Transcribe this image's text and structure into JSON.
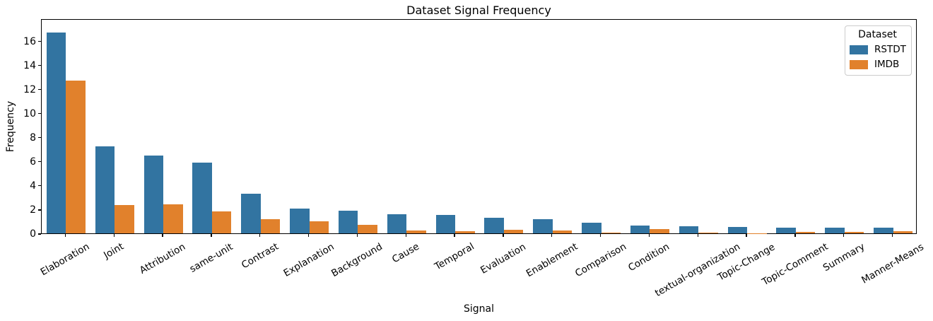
{
  "chart_data": {
    "type": "bar",
    "title": "Dataset Signal Frequency",
    "xlabel": "Signal",
    "ylabel": "Frequency",
    "ylim": [
      0,
      17.85
    ],
    "yticks": [
      0,
      2,
      4,
      6,
      8,
      10,
      12,
      14,
      16
    ],
    "grid": false,
    "categories": [
      "Elaboration",
      "Joint",
      "Attribution",
      "same-unit",
      "Contrast",
      "Explanation",
      "Background",
      "Cause",
      "Temporal",
      "Evaluation",
      "Enablement",
      "Comparison",
      "Condition",
      "textual-organization",
      "Topic-Change",
      "Topic-Comment",
      "Summary",
      "Manner-Means"
    ],
    "series": [
      {
        "name": "RSTDT",
        "color": "#3274a1",
        "values": [
          16.7,
          7.2,
          6.45,
          5.85,
          3.3,
          2.05,
          1.9,
          1.6,
          1.55,
          1.3,
          1.2,
          0.9,
          0.67,
          0.6,
          0.55,
          0.5,
          0.48,
          0.46
        ]
      },
      {
        "name": "IMDB",
        "color": "#e1812c",
        "values": [
          12.7,
          2.35,
          2.4,
          1.85,
          1.15,
          0.97,
          0.69,
          0.22,
          0.2,
          0.27,
          0.25,
          0.05,
          0.33,
          0.07,
          0.02,
          0.09,
          0.09,
          0.16
        ]
      }
    ],
    "legend": {
      "title": "Dataset",
      "position": "upper right"
    },
    "colors": {
      "spine": "#000000",
      "text": "#000000",
      "legend_border": "#cccccc",
      "background": "#ffffff"
    }
  }
}
